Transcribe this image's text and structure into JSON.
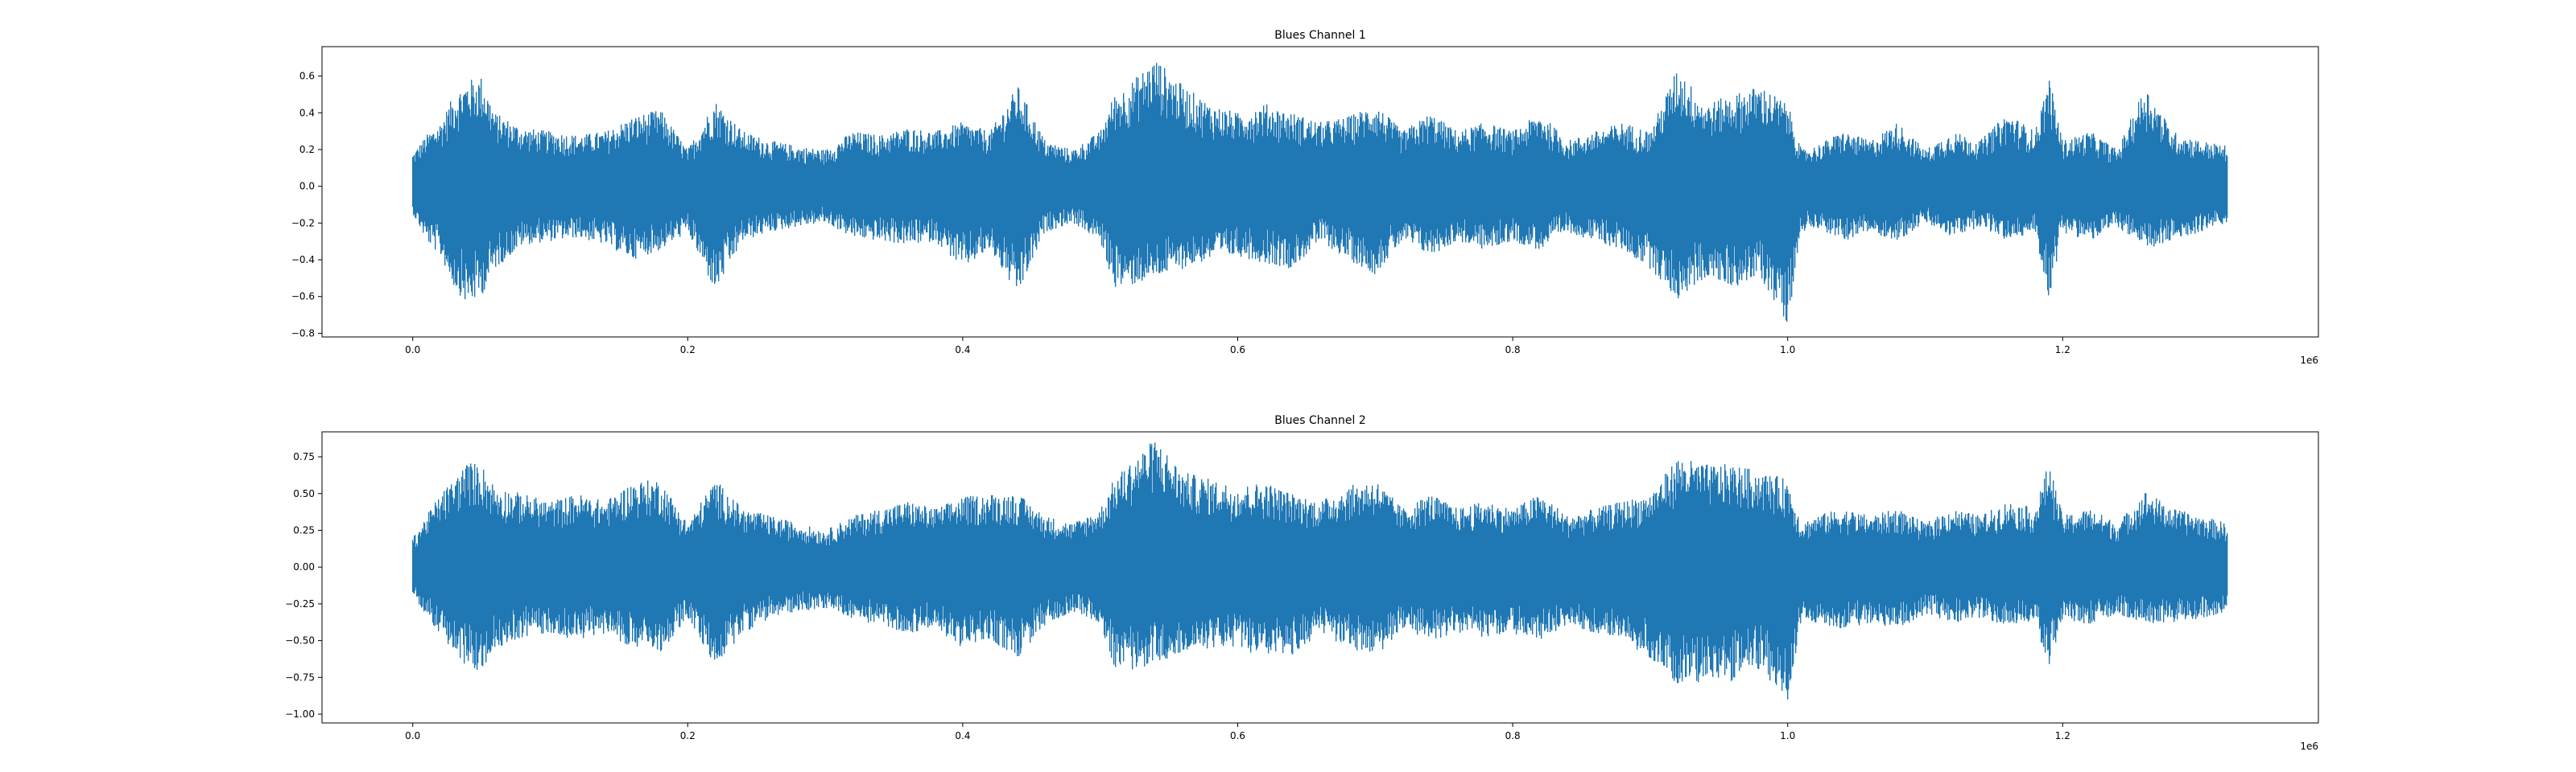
{
  "chart_data": [
    {
      "type": "line",
      "title": "Blues Channel 1",
      "xlabel": "",
      "ylabel": "",
      "x_offset_label": "1e6",
      "xlim": [
        -0.066,
        1.386
      ],
      "ylim": [
        -0.82,
        0.76
      ],
      "x_ticks": [
        0.0,
        0.2,
        0.4,
        0.6,
        0.8,
        1.0,
        1.2
      ],
      "x_tick_labels": [
        "0.0",
        "0.2",
        "0.4",
        "0.6",
        "0.8",
        "1.0",
        "1.2"
      ],
      "y_ticks": [
        -0.8,
        -0.6,
        -0.4,
        -0.2,
        0.0,
        0.2,
        0.4,
        0.6
      ],
      "y_tick_labels": [
        "−0.8",
        "−0.6",
        "−0.4",
        "−0.2",
        "0.0",
        "0.2",
        "0.4",
        "0.6"
      ],
      "grid": false,
      "color": "#1f77b4",
      "series": [
        {
          "envelope_x": [
            0.0,
            0.01,
            0.02,
            0.03,
            0.04,
            0.05,
            0.06,
            0.08,
            0.1,
            0.12,
            0.14,
            0.16,
            0.18,
            0.2,
            0.22,
            0.24,
            0.26,
            0.28,
            0.3,
            0.32,
            0.34,
            0.36,
            0.38,
            0.4,
            0.42,
            0.44,
            0.46,
            0.48,
            0.5,
            0.51,
            0.52,
            0.54,
            0.56,
            0.58,
            0.6,
            0.62,
            0.64,
            0.66,
            0.68,
            0.7,
            0.72,
            0.74,
            0.76,
            0.78,
            0.8,
            0.82,
            0.84,
            0.86,
            0.88,
            0.9,
            0.92,
            0.94,
            0.96,
            0.98,
            1.0,
            1.01,
            1.02,
            1.04,
            1.06,
            1.08,
            1.1,
            1.12,
            1.14,
            1.16,
            1.18,
            1.19,
            1.2,
            1.22,
            1.24,
            1.26,
            1.28,
            1.3,
            1.32
          ],
          "envelope_upper": [
            0.18,
            0.28,
            0.35,
            0.5,
            0.58,
            0.6,
            0.4,
            0.32,
            0.3,
            0.28,
            0.3,
            0.38,
            0.42,
            0.2,
            0.47,
            0.3,
            0.25,
            0.22,
            0.2,
            0.3,
            0.28,
            0.32,
            0.3,
            0.35,
            0.3,
            0.55,
            0.25,
            0.2,
            0.3,
            0.5,
            0.55,
            0.7,
            0.55,
            0.45,
            0.4,
            0.45,
            0.4,
            0.35,
            0.38,
            0.45,
            0.3,
            0.4,
            0.3,
            0.35,
            0.3,
            0.4,
            0.25,
            0.3,
            0.35,
            0.3,
            0.65,
            0.45,
            0.5,
            0.55,
            0.45,
            0.2,
            0.22,
            0.3,
            0.25,
            0.35,
            0.2,
            0.3,
            0.25,
            0.4,
            0.3,
            0.6,
            0.25,
            0.3,
            0.2,
            0.55,
            0.3,
            0.25,
            0.22
          ],
          "envelope_lower": [
            -0.15,
            -0.3,
            -0.38,
            -0.55,
            -0.65,
            -0.6,
            -0.45,
            -0.32,
            -0.3,
            -0.28,
            -0.32,
            -0.4,
            -0.35,
            -0.25,
            -0.58,
            -0.3,
            -0.25,
            -0.22,
            -0.2,
            -0.28,
            -0.3,
            -0.32,
            -0.3,
            -0.45,
            -0.35,
            -0.6,
            -0.25,
            -0.2,
            -0.3,
            -0.55,
            -0.55,
            -0.5,
            -0.45,
            -0.4,
            -0.38,
            -0.42,
            -0.45,
            -0.3,
            -0.4,
            -0.48,
            -0.3,
            -0.38,
            -0.3,
            -0.35,
            -0.3,
            -0.35,
            -0.25,
            -0.3,
            -0.35,
            -0.45,
            -0.62,
            -0.5,
            -0.55,
            -0.5,
            -0.75,
            -0.25,
            -0.22,
            -0.3,
            -0.25,
            -0.3,
            -0.2,
            -0.28,
            -0.22,
            -0.3,
            -0.25,
            -0.62,
            -0.25,
            -0.3,
            -0.22,
            -0.35,
            -0.3,
            -0.25,
            -0.2
          ]
        }
      ]
    },
    {
      "type": "line",
      "title": "Blues Channel 2",
      "xlabel": "",
      "ylabel": "",
      "x_offset_label": "1e6",
      "xlim": [
        -0.066,
        1.386
      ],
      "ylim": [
        -1.06,
        0.92
      ],
      "x_ticks": [
        0.0,
        0.2,
        0.4,
        0.6,
        0.8,
        1.0,
        1.2
      ],
      "x_tick_labels": [
        "0.0",
        "0.2",
        "0.4",
        "0.6",
        "0.8",
        "1.0",
        "1.2"
      ],
      "y_ticks": [
        -1.0,
        -0.75,
        -0.5,
        -0.25,
        0.0,
        0.25,
        0.5,
        0.75
      ],
      "y_tick_labels": [
        "−1.00",
        "−0.75",
        "−0.50",
        "−0.25",
        "0.00",
        "0.25",
        "0.50",
        "0.75"
      ],
      "grid": false,
      "color": "#1f77b4",
      "series": [
        {
          "envelope_x": [
            0.0,
            0.01,
            0.02,
            0.03,
            0.04,
            0.05,
            0.06,
            0.08,
            0.1,
            0.12,
            0.14,
            0.16,
            0.18,
            0.2,
            0.22,
            0.24,
            0.26,
            0.28,
            0.3,
            0.32,
            0.34,
            0.36,
            0.38,
            0.4,
            0.42,
            0.44,
            0.46,
            0.48,
            0.5,
            0.51,
            0.52,
            0.54,
            0.56,
            0.58,
            0.6,
            0.62,
            0.64,
            0.66,
            0.68,
            0.7,
            0.72,
            0.74,
            0.76,
            0.78,
            0.8,
            0.82,
            0.84,
            0.86,
            0.88,
            0.9,
            0.92,
            0.94,
            0.96,
            0.98,
            1.0,
            1.01,
            1.02,
            1.04,
            1.06,
            1.08,
            1.1,
            1.12,
            1.14,
            1.16,
            1.18,
            1.19,
            1.2,
            1.22,
            1.24,
            1.26,
            1.28,
            1.3,
            1.32
          ],
          "envelope_upper": [
            0.2,
            0.35,
            0.5,
            0.6,
            0.72,
            0.7,
            0.55,
            0.5,
            0.45,
            0.5,
            0.45,
            0.58,
            0.6,
            0.3,
            0.6,
            0.4,
            0.35,
            0.3,
            0.25,
            0.35,
            0.4,
            0.45,
            0.4,
            0.48,
            0.5,
            0.5,
            0.35,
            0.3,
            0.4,
            0.6,
            0.7,
            0.88,
            0.65,
            0.6,
            0.55,
            0.58,
            0.5,
            0.45,
            0.55,
            0.6,
            0.4,
            0.5,
            0.4,
            0.45,
            0.4,
            0.5,
            0.35,
            0.4,
            0.45,
            0.5,
            0.75,
            0.7,
            0.7,
            0.65,
            0.6,
            0.3,
            0.35,
            0.4,
            0.35,
            0.4,
            0.3,
            0.4,
            0.35,
            0.45,
            0.4,
            0.72,
            0.35,
            0.4,
            0.3,
            0.52,
            0.4,
            0.35,
            0.3
          ],
          "envelope_lower": [
            -0.18,
            -0.35,
            -0.45,
            -0.6,
            -0.7,
            -0.72,
            -0.55,
            -0.48,
            -0.45,
            -0.5,
            -0.45,
            -0.55,
            -0.58,
            -0.35,
            -0.68,
            -0.45,
            -0.35,
            -0.3,
            -0.28,
            -0.35,
            -0.4,
            -0.45,
            -0.42,
            -0.55,
            -0.5,
            -0.62,
            -0.4,
            -0.3,
            -0.38,
            -0.68,
            -0.72,
            -0.65,
            -0.6,
            -0.55,
            -0.55,
            -0.62,
            -0.6,
            -0.45,
            -0.55,
            -0.62,
            -0.42,
            -0.5,
            -0.45,
            -0.48,
            -0.45,
            -0.5,
            -0.4,
            -0.45,
            -0.5,
            -0.62,
            -0.8,
            -0.78,
            -0.78,
            -0.7,
            -0.92,
            -0.35,
            -0.38,
            -0.42,
            -0.38,
            -0.42,
            -0.32,
            -0.38,
            -0.35,
            -0.4,
            -0.38,
            -0.68,
            -0.35,
            -0.4,
            -0.32,
            -0.38,
            -0.38,
            -0.35,
            -0.32
          ]
        }
      ]
    }
  ]
}
